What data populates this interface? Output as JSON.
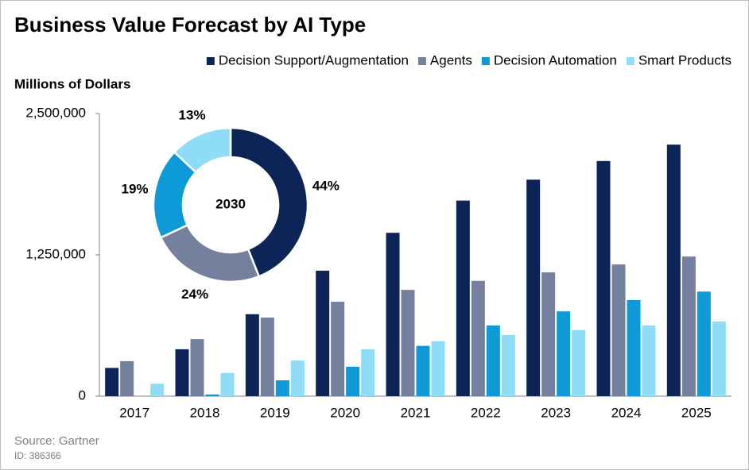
{
  "chart_data": [
    {
      "type": "bar",
      "title": "Business Value Forecast by AI Type",
      "y_label": "Millions of Dollars",
      "categories": [
        "2017",
        "2018",
        "2019",
        "2020",
        "2021",
        "2022",
        "2023",
        "2024",
        "2025"
      ],
      "series": [
        {
          "name": "Decision Support/Augmentation",
          "color": "#0d2456",
          "values": [
            250000,
            415000,
            725000,
            1110000,
            1445000,
            1730000,
            1915000,
            2080000,
            2225000
          ]
        },
        {
          "name": "Agents",
          "color": "#75809f",
          "values": [
            310000,
            505000,
            695000,
            835000,
            940000,
            1020000,
            1095000,
            1165000,
            1235000
          ]
        },
        {
          "name": "Decision Automation",
          "color": "#0d9ad6",
          "values": [
            0,
            15000,
            140000,
            260000,
            445000,
            625000,
            750000,
            850000,
            925000
          ]
        },
        {
          "name": "Smart Products",
          "color": "#8fdcf6",
          "values": [
            110000,
            205000,
            315000,
            415000,
            485000,
            540000,
            585000,
            625000,
            660000
          ]
        }
      ],
      "ylim": [
        0,
        2500000
      ],
      "yticks": [
        0,
        {
          "value": 1250000,
          "label": "1,250,000"
        },
        {
          "value": 2500000,
          "label": "2,500,000"
        }
      ],
      "legend": "top-right",
      "grid": false,
      "source": "Source: Gartner",
      "id": "ID: 386366"
    },
    {
      "type": "pie",
      "center_label": "2030",
      "values": [
        44,
        24,
        19,
        13
      ],
      "value_labels": [
        "44%",
        "24%",
        "19%",
        "13%"
      ],
      "colors": [
        "#0d2456",
        "#75809f",
        "#0d9ad6",
        "#8fdcf6"
      ]
    }
  ]
}
